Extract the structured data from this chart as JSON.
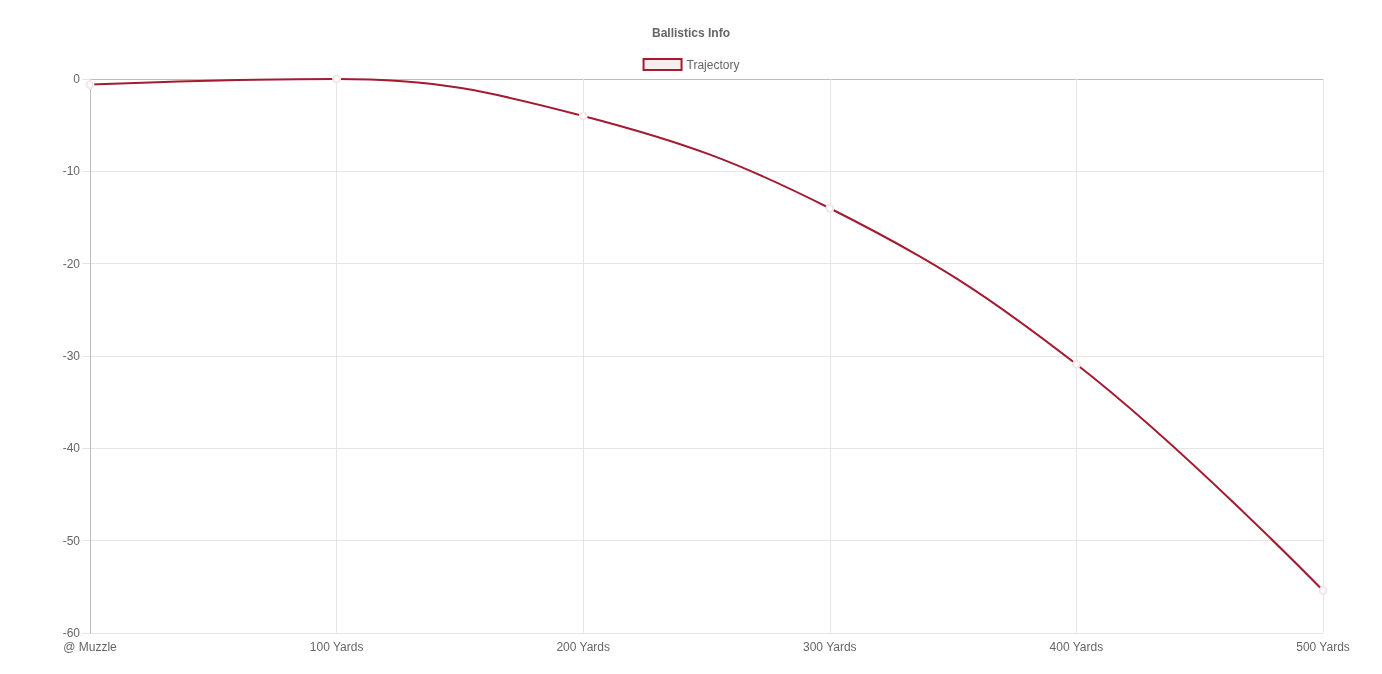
{
  "chart_data": {
    "type": "line",
    "title": "Ballistics Info",
    "categories": [
      "@ Muzzle",
      "100 Yards",
      "200 Yards",
      "300 Yards",
      "400 Yards",
      "500 Yards"
    ],
    "series": [
      {
        "name": "Trajectory",
        "color": "#a31a31",
        "values": [
          -0.6,
          0,
          -4.0,
          -14.0,
          -30.9,
          -55.4
        ]
      }
    ],
    "ylim": [
      -60,
      0
    ],
    "yticks": [
      -60,
      -50,
      -40,
      -30,
      -20,
      -10,
      0
    ],
    "grid": true,
    "legend": "top",
    "marker": "circle",
    "line_style": "solid"
  }
}
